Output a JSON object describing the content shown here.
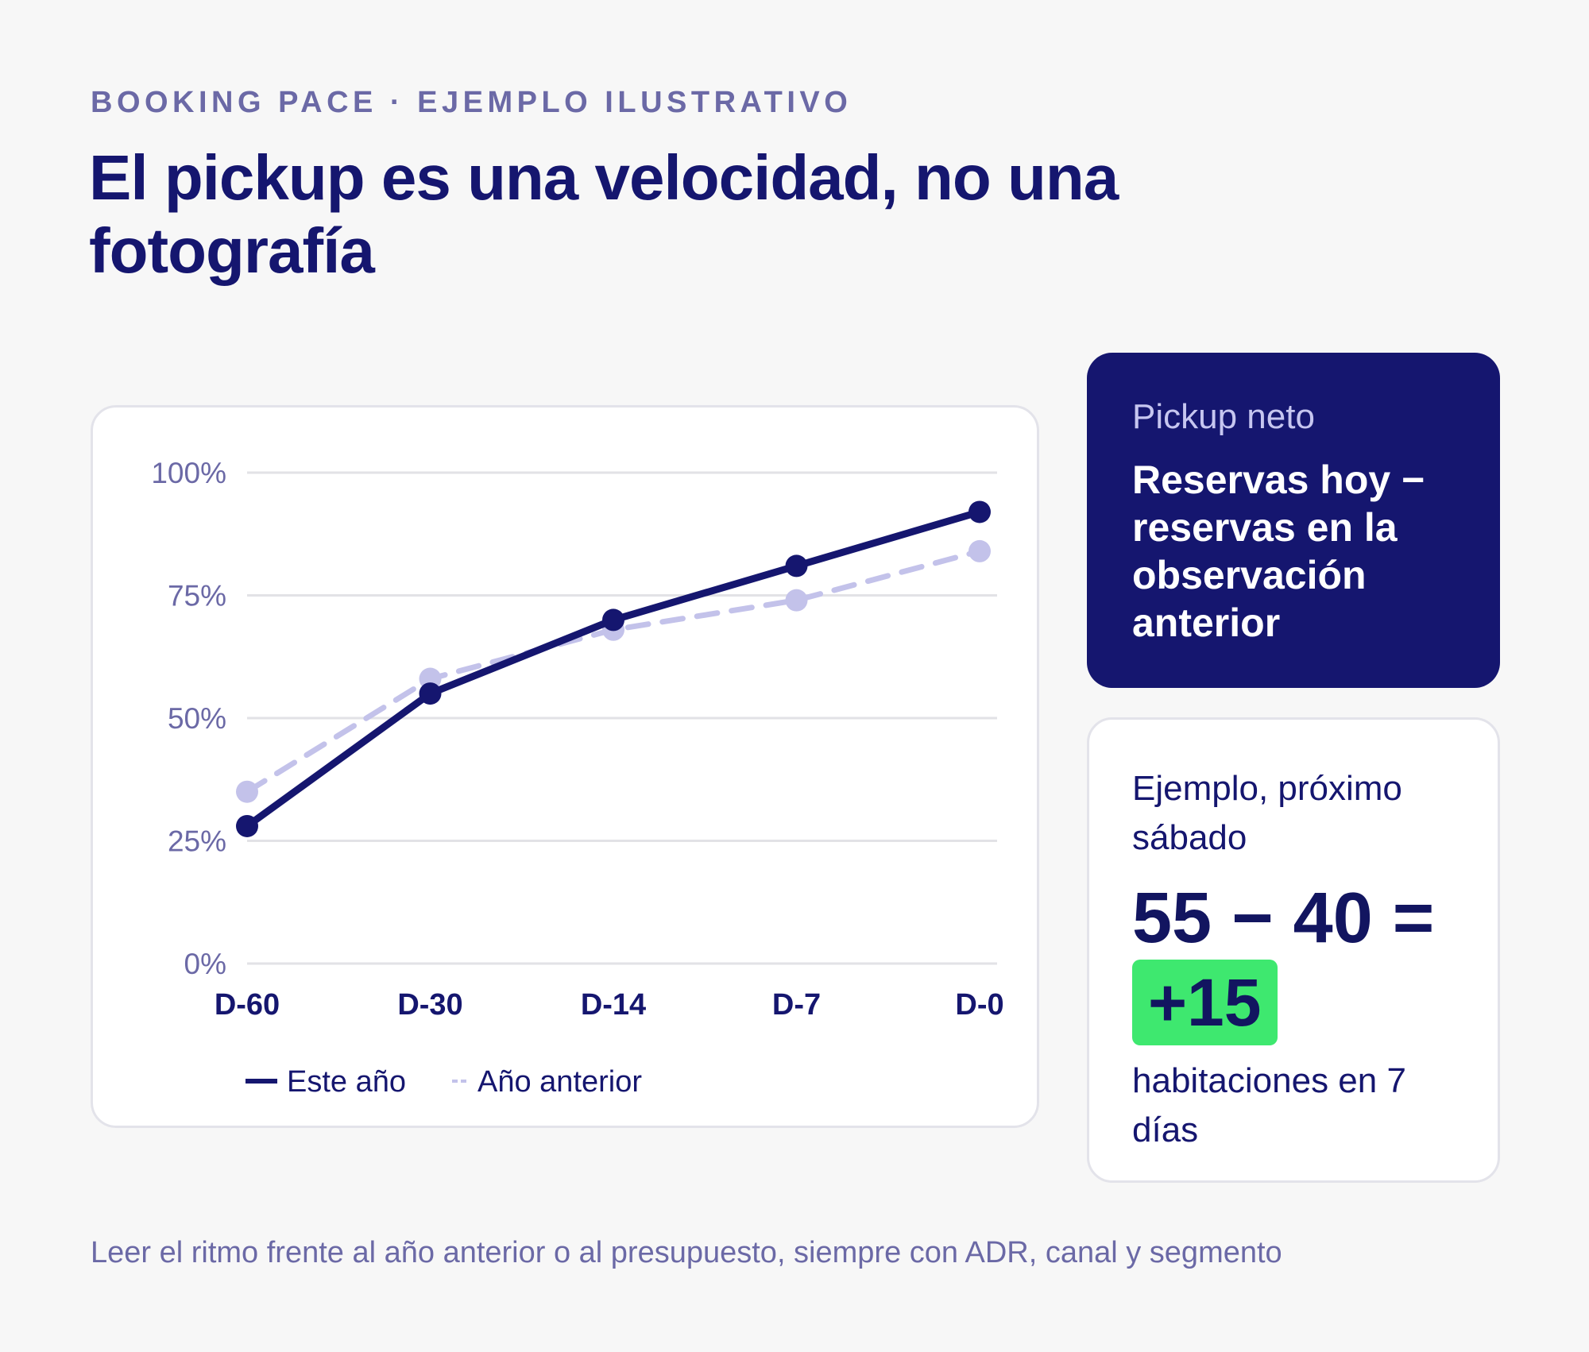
{
  "eyebrow": "BOOKING PACE · EJEMPLO ILUSTRATIVO",
  "title": "El pickup es una velocidad, no una fotografía",
  "definition": {
    "label": "Pickup neto",
    "formula": "Reservas hoy − reservas en la observación anterior"
  },
  "example": {
    "label": "Ejemplo, próximo sábado",
    "calculation": "55 − 40 =",
    "result": "+15",
    "unit": "habitaciones en 7 días"
  },
  "footnote": "Leer el ritmo frente al año anterior o al presupuesto, siempre con ADR, canal y segmento",
  "colors": {
    "this_year": "#15166f",
    "previous_year": "#c3c2ea",
    "highlight": "#3ee86f"
  },
  "chart_data": {
    "type": "line",
    "categories": [
      "D-60",
      "D-30",
      "D-14",
      "D-7",
      "D-0"
    ],
    "y_ticks": [
      "0%",
      "25%",
      "50%",
      "75%",
      "100%"
    ],
    "ylim": [
      0,
      100
    ],
    "grid": true,
    "legend_position": "bottom",
    "series": [
      {
        "name": "Este año",
        "values": [
          28,
          55,
          70,
          81,
          92
        ],
        "style": "solid"
      },
      {
        "name": "Año anterior",
        "values": [
          35,
          58,
          68,
          74,
          84
        ],
        "style": "dashed"
      }
    ]
  }
}
